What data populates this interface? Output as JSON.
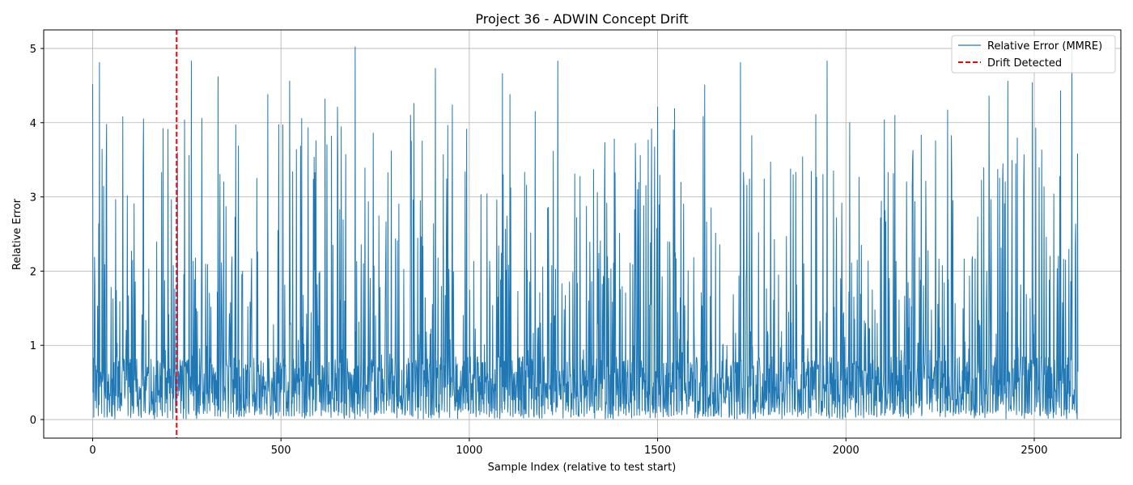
{
  "chart_data": {
    "type": "line",
    "title": "Project 36 - ADWIN Concept Drift",
    "xlabel": "Sample Index (relative to test start)",
    "ylabel": "Relative Error",
    "xlim": [
      -130,
      2730
    ],
    "ylim": [
      -0.25,
      5.25
    ],
    "xticks": [
      0,
      500,
      1000,
      1500,
      2000,
      2500
    ],
    "yticks": [
      0,
      1,
      2,
      3,
      4,
      5
    ],
    "grid": true,
    "legend_position": "top-right",
    "series": [
      {
        "name": "Relative Error (MMRE)",
        "color": "#1f77b4",
        "n_points": 2617,
        "typical_baseline": 0.5,
        "min": 0.0,
        "max": 5.02,
        "peaks": [
          [
            0,
            4.52
          ],
          [
            18,
            4.81
          ],
          [
            37,
            3.98
          ],
          [
            80,
            4.08
          ],
          [
            135,
            4.05
          ],
          [
            183,
            3.33
          ],
          [
            262,
            4.83
          ],
          [
            290,
            4.06
          ],
          [
            333,
            4.62
          ],
          [
            380,
            3.97
          ],
          [
            465,
            4.38
          ],
          [
            505,
            3.97
          ],
          [
            523,
            4.56
          ],
          [
            617,
            4.32
          ],
          [
            650,
            4.21
          ],
          [
            697,
            5.02
          ],
          [
            745,
            3.86
          ],
          [
            853,
            4.26
          ],
          [
            910,
            4.73
          ],
          [
            955,
            4.24
          ],
          [
            1088,
            4.66
          ],
          [
            1108,
            4.38
          ],
          [
            1175,
            4.15
          ],
          [
            1235,
            4.83
          ],
          [
            1340,
            3.06
          ],
          [
            1500,
            4.21
          ],
          [
            1545,
            4.19
          ],
          [
            1625,
            4.51
          ],
          [
            1720,
            4.81
          ],
          [
            1800,
            3.47
          ],
          [
            1920,
            4.11
          ],
          [
            1950,
            4.83
          ],
          [
            2130,
            4.1
          ],
          [
            2200,
            3.83
          ],
          [
            2270,
            4.17
          ],
          [
            2380,
            4.36
          ],
          [
            2430,
            4.56
          ],
          [
            2495,
            4.54
          ],
          [
            2570,
            4.43
          ],
          [
            2600,
            5.02
          ]
        ]
      }
    ],
    "drift_points": [
      {
        "name": "Drift Detected",
        "x": 223,
        "color": "#ff0000",
        "style": "dashed"
      }
    ]
  }
}
